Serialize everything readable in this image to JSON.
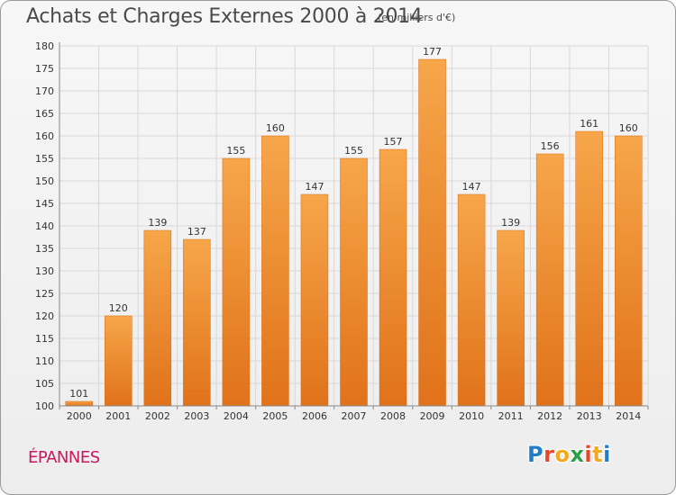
{
  "chart_data": {
    "type": "bar",
    "title": "Achats et Charges Externes 2000 à 2014",
    "subtitle": "(en milliers d'€)",
    "categories": [
      "2000",
      "2001",
      "2002",
      "2003",
      "2004",
      "2005",
      "2006",
      "2007",
      "2008",
      "2009",
      "2010",
      "2011",
      "2012",
      "2013",
      "2014"
    ],
    "values": [
      101,
      120,
      139,
      137,
      155,
      160,
      147,
      155,
      157,
      177,
      147,
      139,
      156,
      161,
      160
    ],
    "ylim": [
      100,
      180
    ],
    "yticks": [
      100,
      105,
      110,
      115,
      120,
      125,
      130,
      135,
      140,
      145,
      150,
      155,
      160,
      165,
      170,
      175,
      180
    ],
    "grid": true,
    "colors": {
      "bar_top": "#f7a64a",
      "bar_bottom": "#e0721a",
      "bar_edge": "#d96a12",
      "grid": "#d8d8d8",
      "axis": "#888888"
    }
  },
  "footer": {
    "place": "ÉPANNES",
    "logo_letters": [
      "P",
      "r",
      "o",
      "x",
      "i",
      "t",
      "i"
    ],
    "logo_colors": [
      "#1e7fc8",
      "#e8472b",
      "#f5a81c",
      "#2aa046",
      "#e8472b",
      "#f5a81c",
      "#1e7fc8"
    ]
  }
}
